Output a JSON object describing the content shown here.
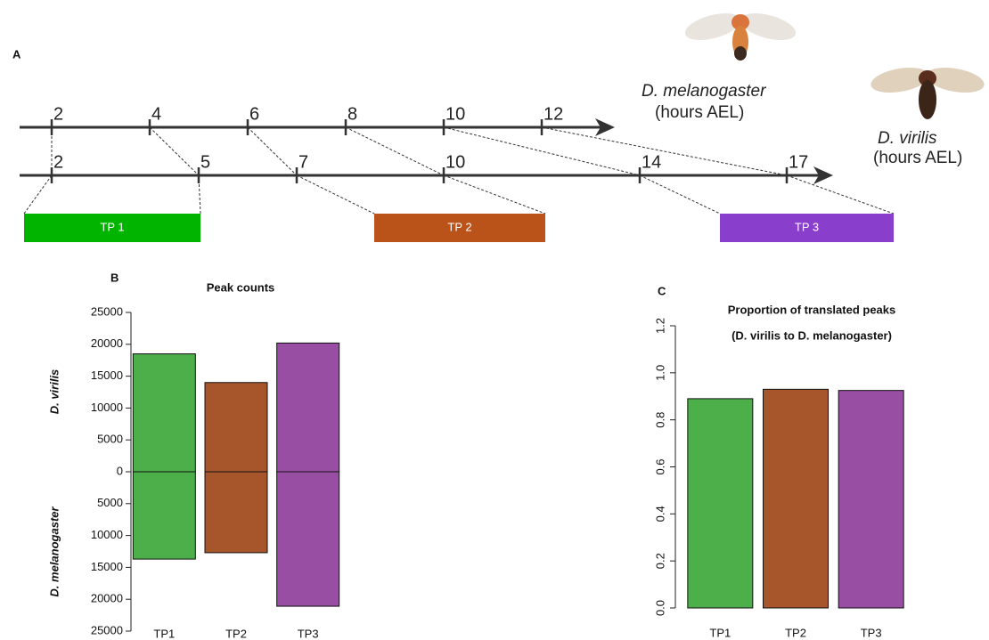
{
  "chart_data": [
    {
      "type": "timeline",
      "label": "A",
      "axes": [
        {
          "name": "D. melanogaster",
          "unit": "(hours AEL)",
          "ticks": [
            2,
            4,
            6,
            8,
            10,
            12
          ]
        },
        {
          "name": "D. virilis",
          "unit": "(hours AEL)",
          "ticks": [
            2,
            5,
            7,
            10,
            14,
            17
          ]
        }
      ],
      "periods": [
        {
          "label": "TP 1",
          "color": "#00b400"
        },
        {
          "label": "TP 2",
          "color": "#b9531a"
        },
        {
          "label": "TP 3",
          "color": "#8a3fcc"
        }
      ]
    },
    {
      "type": "bar",
      "label": "B",
      "title": "Peak counts",
      "categories": [
        "TP1",
        "TP2",
        "TP3"
      ],
      "colors": [
        "#4daf4a",
        "#a6562a",
        "#984ea3"
      ],
      "series": [
        {
          "name": "D. virilis",
          "values": [
            18500,
            14000,
            20200
          ]
        },
        {
          "name": "D. melanogaster",
          "values": [
            -13700,
            -12700,
            -21100
          ]
        }
      ],
      "ylim": [
        -25000,
        25000
      ],
      "yticks": [
        {
          "value": -25000,
          "label": "25000"
        },
        {
          "value": -20000,
          "label": "20000"
        },
        {
          "value": -15000,
          "label": "15000"
        },
        {
          "value": -10000,
          "label": "10000"
        },
        {
          "value": -5000,
          "label": "5000"
        },
        0,
        5000,
        10000,
        15000,
        20000,
        25000
      ]
    },
    {
      "type": "bar",
      "label": "C",
      "title": "Proportion of translated peaks",
      "subtitle": "(D. virilis to D. melanogaster)",
      "categories": [
        "TP1",
        "TP2",
        "TP3"
      ],
      "colors": [
        "#4daf4a",
        "#a6562a",
        "#984ea3"
      ],
      "values": [
        0.89,
        0.93,
        0.925
      ],
      "ylim": [
        0,
        1.2
      ],
      "yticks": [
        {
          "value": 0,
          "label": "0.0"
        },
        0.2,
        0.4,
        0.6,
        0.8,
        {
          "value": 1,
          "label": "1.0"
        },
        1.2
      ]
    }
  ]
}
